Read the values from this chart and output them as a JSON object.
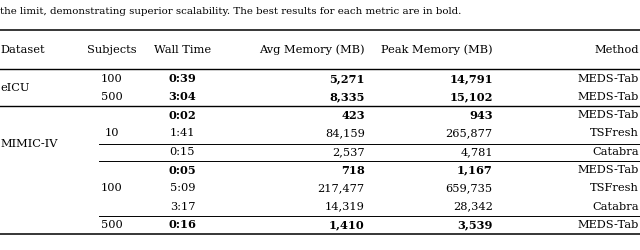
{
  "caption": "the limit, demonstrating superior scalability. The best results for each metric are in bold.",
  "headers": [
    "Dataset",
    "Subjects",
    "Wall Time",
    "Avg Memory (MB)",
    "Peak Memory (MB)",
    "Method"
  ],
  "rows": [
    {
      "subjects": "100",
      "wall_time": "0:39",
      "avg_mem": "5,271",
      "peak_mem": "14,791",
      "method": "MEDS-Tab",
      "bold_wall": true,
      "bold_avg": true,
      "bold_peak": true
    },
    {
      "subjects": "500",
      "wall_time": "3:04",
      "avg_mem": "8,335",
      "peak_mem": "15,102",
      "method": "MEDS-Tab",
      "bold_wall": true,
      "bold_avg": true,
      "bold_peak": true
    },
    {
      "subjects": "",
      "wall_time": "0:02",
      "avg_mem": "423",
      "peak_mem": "943",
      "method": "MEDS-Tab",
      "bold_wall": true,
      "bold_avg": true,
      "bold_peak": true
    },
    {
      "subjects": "10",
      "wall_time": "1:41",
      "avg_mem": "84,159",
      "peak_mem": "265,877",
      "method": "TSFresh",
      "bold_wall": false,
      "bold_avg": false,
      "bold_peak": false
    },
    {
      "subjects": "",
      "wall_time": "0:15",
      "avg_mem": "2,537",
      "peak_mem": "4,781",
      "method": "Catabra",
      "bold_wall": false,
      "bold_avg": false,
      "bold_peak": false
    },
    {
      "subjects": "",
      "wall_time": "0:05",
      "avg_mem": "718",
      "peak_mem": "1,167",
      "method": "MEDS-Tab",
      "bold_wall": true,
      "bold_avg": true,
      "bold_peak": true
    },
    {
      "subjects": "100",
      "wall_time": "5:09",
      "avg_mem": "217,477",
      "peak_mem": "659,735",
      "method": "TSFresh",
      "bold_wall": false,
      "bold_avg": false,
      "bold_peak": false
    },
    {
      "subjects": "",
      "wall_time": "3:17",
      "avg_mem": "14,319",
      "peak_mem": "28,342",
      "method": "Catabra",
      "bold_wall": false,
      "bold_avg": false,
      "bold_peak": false
    },
    {
      "subjects": "500",
      "wall_time": "0:16",
      "avg_mem": "1,410",
      "peak_mem": "3,539",
      "method": "MEDS-Tab",
      "bold_wall": true,
      "bold_avg": true,
      "bold_peak": true
    }
  ],
  "figsize": [
    6.4,
    2.5
  ],
  "dpi": 100,
  "font_size": 8.2,
  "font_family": "DejaVu Serif"
}
